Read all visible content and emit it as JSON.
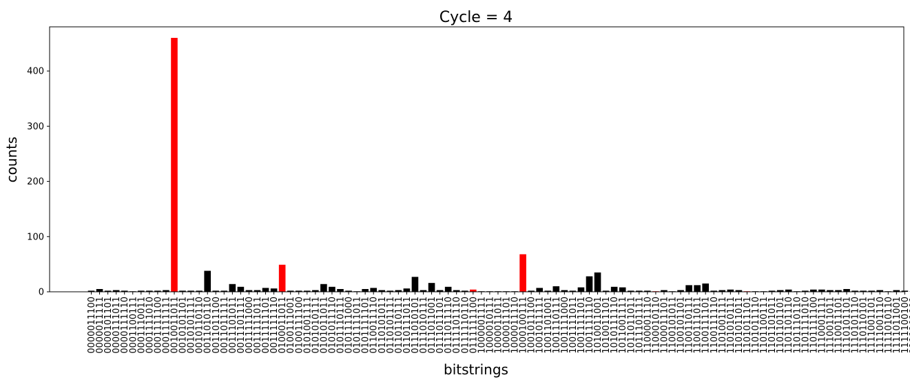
{
  "chart_data": {
    "type": "bar",
    "title": "Cycle  = 4",
    "xlabel": "bitstrings",
    "ylabel": "counts",
    "ylim": [
      0,
      480
    ],
    "yticks": [
      0,
      100,
      200,
      300,
      400
    ],
    "grid": false,
    "categories": [
      "0000011100",
      "0000011111",
      "0000101101",
      "0000111011",
      "0000111110",
      "0001100111",
      "0001110011",
      "0001111010",
      "0001111100",
      "0001111111",
      "0010011011",
      "0010101101",
      "0010101111",
      "0010110110",
      "0011010110",
      "0011011100",
      "0011011111",
      "0011101011",
      "0011101111",
      "0011111000",
      "0011111011",
      "0011111101",
      "0011111110",
      "0100011011",
      "0100111001",
      "0100111100",
      "0101001111",
      "0101010111",
      "0101011011",
      "0101011110",
      "0101110111",
      "0101111000",
      "0101111011",
      "0101111101",
      "0110011110",
      "0110101011",
      "0110101111",
      "0110110111",
      "0110111011",
      "0111010101",
      "0111010111",
      "0111011001",
      "0111011101",
      "0111011110",
      "0111101110",
      "0111110110",
      "0111111100",
      "1000001111",
      "1000010111",
      "1000011011",
      "1000011101",
      "1000011110",
      "1000100111",
      "1001011100",
      "1001011111",
      "1001101001",
      "1001110111",
      "1001111000",
      "1001111011",
      "1001111101",
      "1001111110",
      "1010011001",
      "1010011101",
      "1010111110",
      "1011001111",
      "1011011011",
      "1011101111",
      "1100001110",
      "1100010110",
      "1100011101",
      "1100101011",
      "1100101101",
      "1100110111",
      "1100111011",
      "1100111101",
      "1100111110",
      "1101001111",
      "1101010111",
      "1101011011",
      "1101011101",
      "1101011110",
      "1101100111",
      "1101101011",
      "1101101101",
      "1101101110",
      "1101110110",
      "1101111010",
      "1101111100",
      "1110001111",
      "1110011011",
      "1110011101",
      "1110101101",
      "1110101110",
      "1110110101",
      "1111001101",
      "1111001110",
      "1111010110",
      "1111011001",
      "1111100100",
      "1111101001",
      "1111111000"
    ],
    "values": [
      2,
      5,
      2,
      3,
      2,
      1,
      2,
      2,
      2,
      3,
      460,
      2,
      2,
      2,
      38,
      2,
      2,
      14,
      9,
      3,
      3,
      7,
      6,
      49,
      2,
      2,
      2,
      3,
      14,
      9,
      5,
      2,
      1,
      5,
      7,
      3,
      2,
      3,
      6,
      27,
      3,
      16,
      3,
      9,
      3,
      2,
      4,
      1,
      1,
      1,
      1,
      1,
      68,
      2,
      7,
      2,
      10,
      3,
      2,
      8,
      28,
      35,
      2,
      9,
      8,
      2,
      2,
      2,
      1,
      3,
      1,
      3,
      12,
      12,
      15,
      2,
      3,
      4,
      3,
      1,
      1,
      1,
      2,
      3,
      4,
      1,
      2,
      4,
      4,
      3,
      3,
      5,
      2,
      2,
      2,
      3,
      1,
      3,
      2,
      1,
      2
    ],
    "highlight_color": "#ff0000",
    "bar_color": "#000000",
    "highlight_indices": [
      10,
      23,
      46,
      52,
      68,
      79,
      100
    ]
  }
}
